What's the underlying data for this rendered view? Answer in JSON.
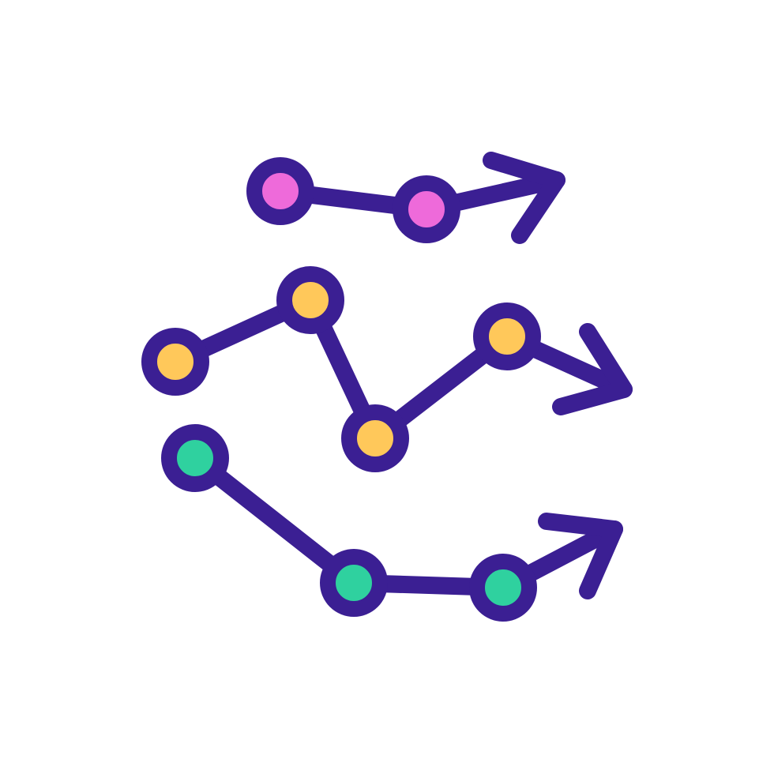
{
  "icon": {
    "name": "trajectory-paths-icon",
    "stroke_color": "#3b1f93",
    "background_color": "#ffffff"
  },
  "paths": [
    {
      "name": "top-path",
      "node_fill": "#ee6ada",
      "nodes": 2,
      "arrow": "right"
    },
    {
      "name": "middle-path",
      "node_fill": "#ffc85a",
      "nodes": 4,
      "arrow": "right"
    },
    {
      "name": "bottom-path",
      "node_fill": "#2fd19f",
      "nodes": 3,
      "arrow": "right"
    }
  ]
}
